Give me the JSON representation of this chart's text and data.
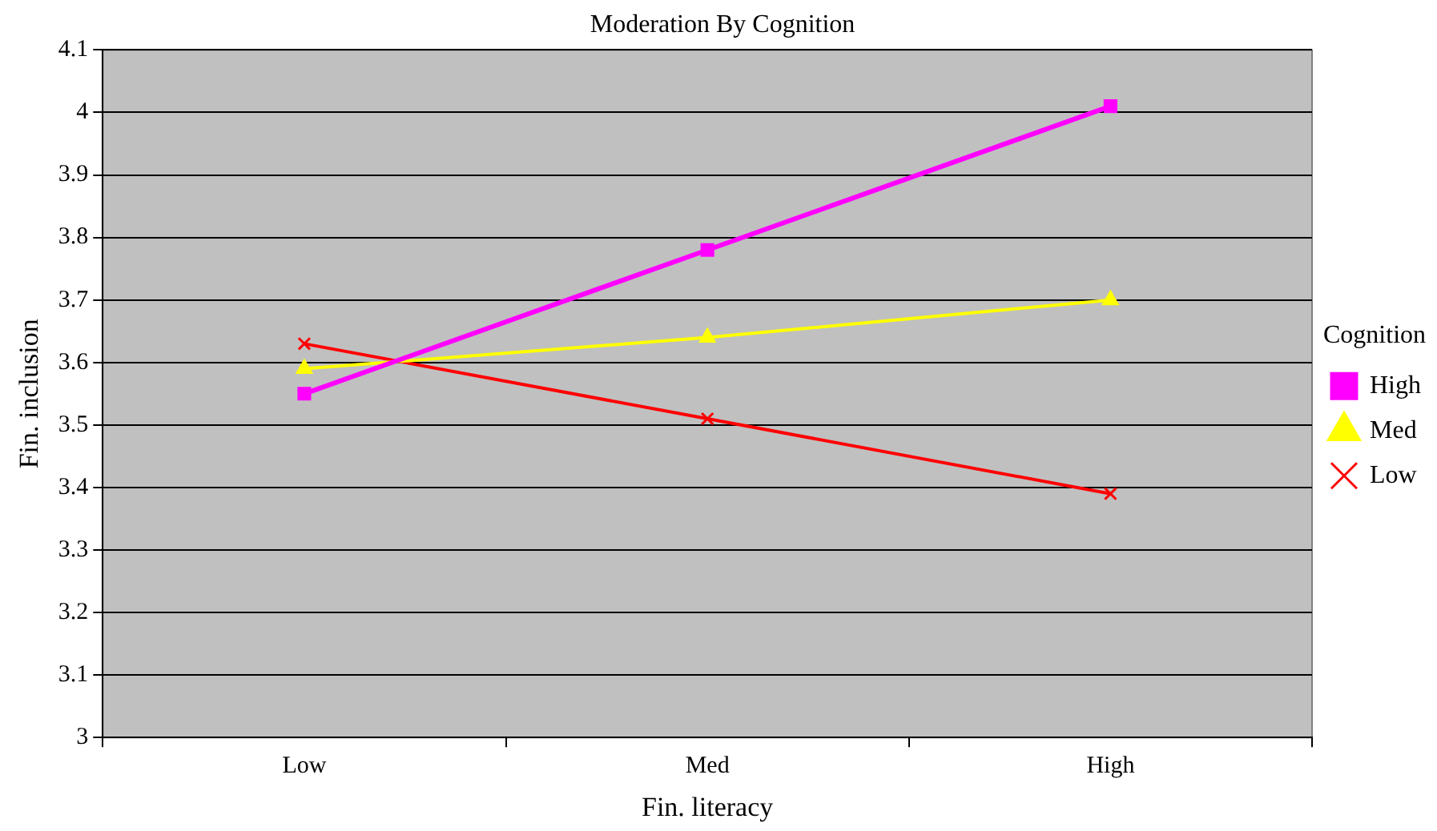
{
  "chart_data": {
    "type": "line",
    "title": "Moderation By Cognition",
    "xlabel": "Fin. literacy",
    "ylabel": "Fin. inclusion",
    "legend_title": "Cognition",
    "categories": [
      "Low",
      "Med",
      "High"
    ],
    "series": [
      {
        "name": "High",
        "color": "#ff00ff",
        "values": [
          3.55,
          3.78,
          4.01
        ],
        "marker": "square"
      },
      {
        "name": "Med",
        "color": "#ffff00",
        "values": [
          3.59,
          3.64,
          3.7
        ],
        "marker": "triangle"
      },
      {
        "name": "Low",
        "color": "#ff0000",
        "values": [
          3.63,
          3.51,
          3.39
        ],
        "marker": "cross"
      }
    ],
    "ylim": [
      3,
      4.1
    ],
    "yticks": [
      3,
      3.1,
      3.2,
      3.3,
      3.4,
      3.5,
      3.6,
      3.7,
      3.8,
      3.9,
      4,
      4.1
    ],
    "grid": "y",
    "legend": "right",
    "line_style": "solid"
  }
}
